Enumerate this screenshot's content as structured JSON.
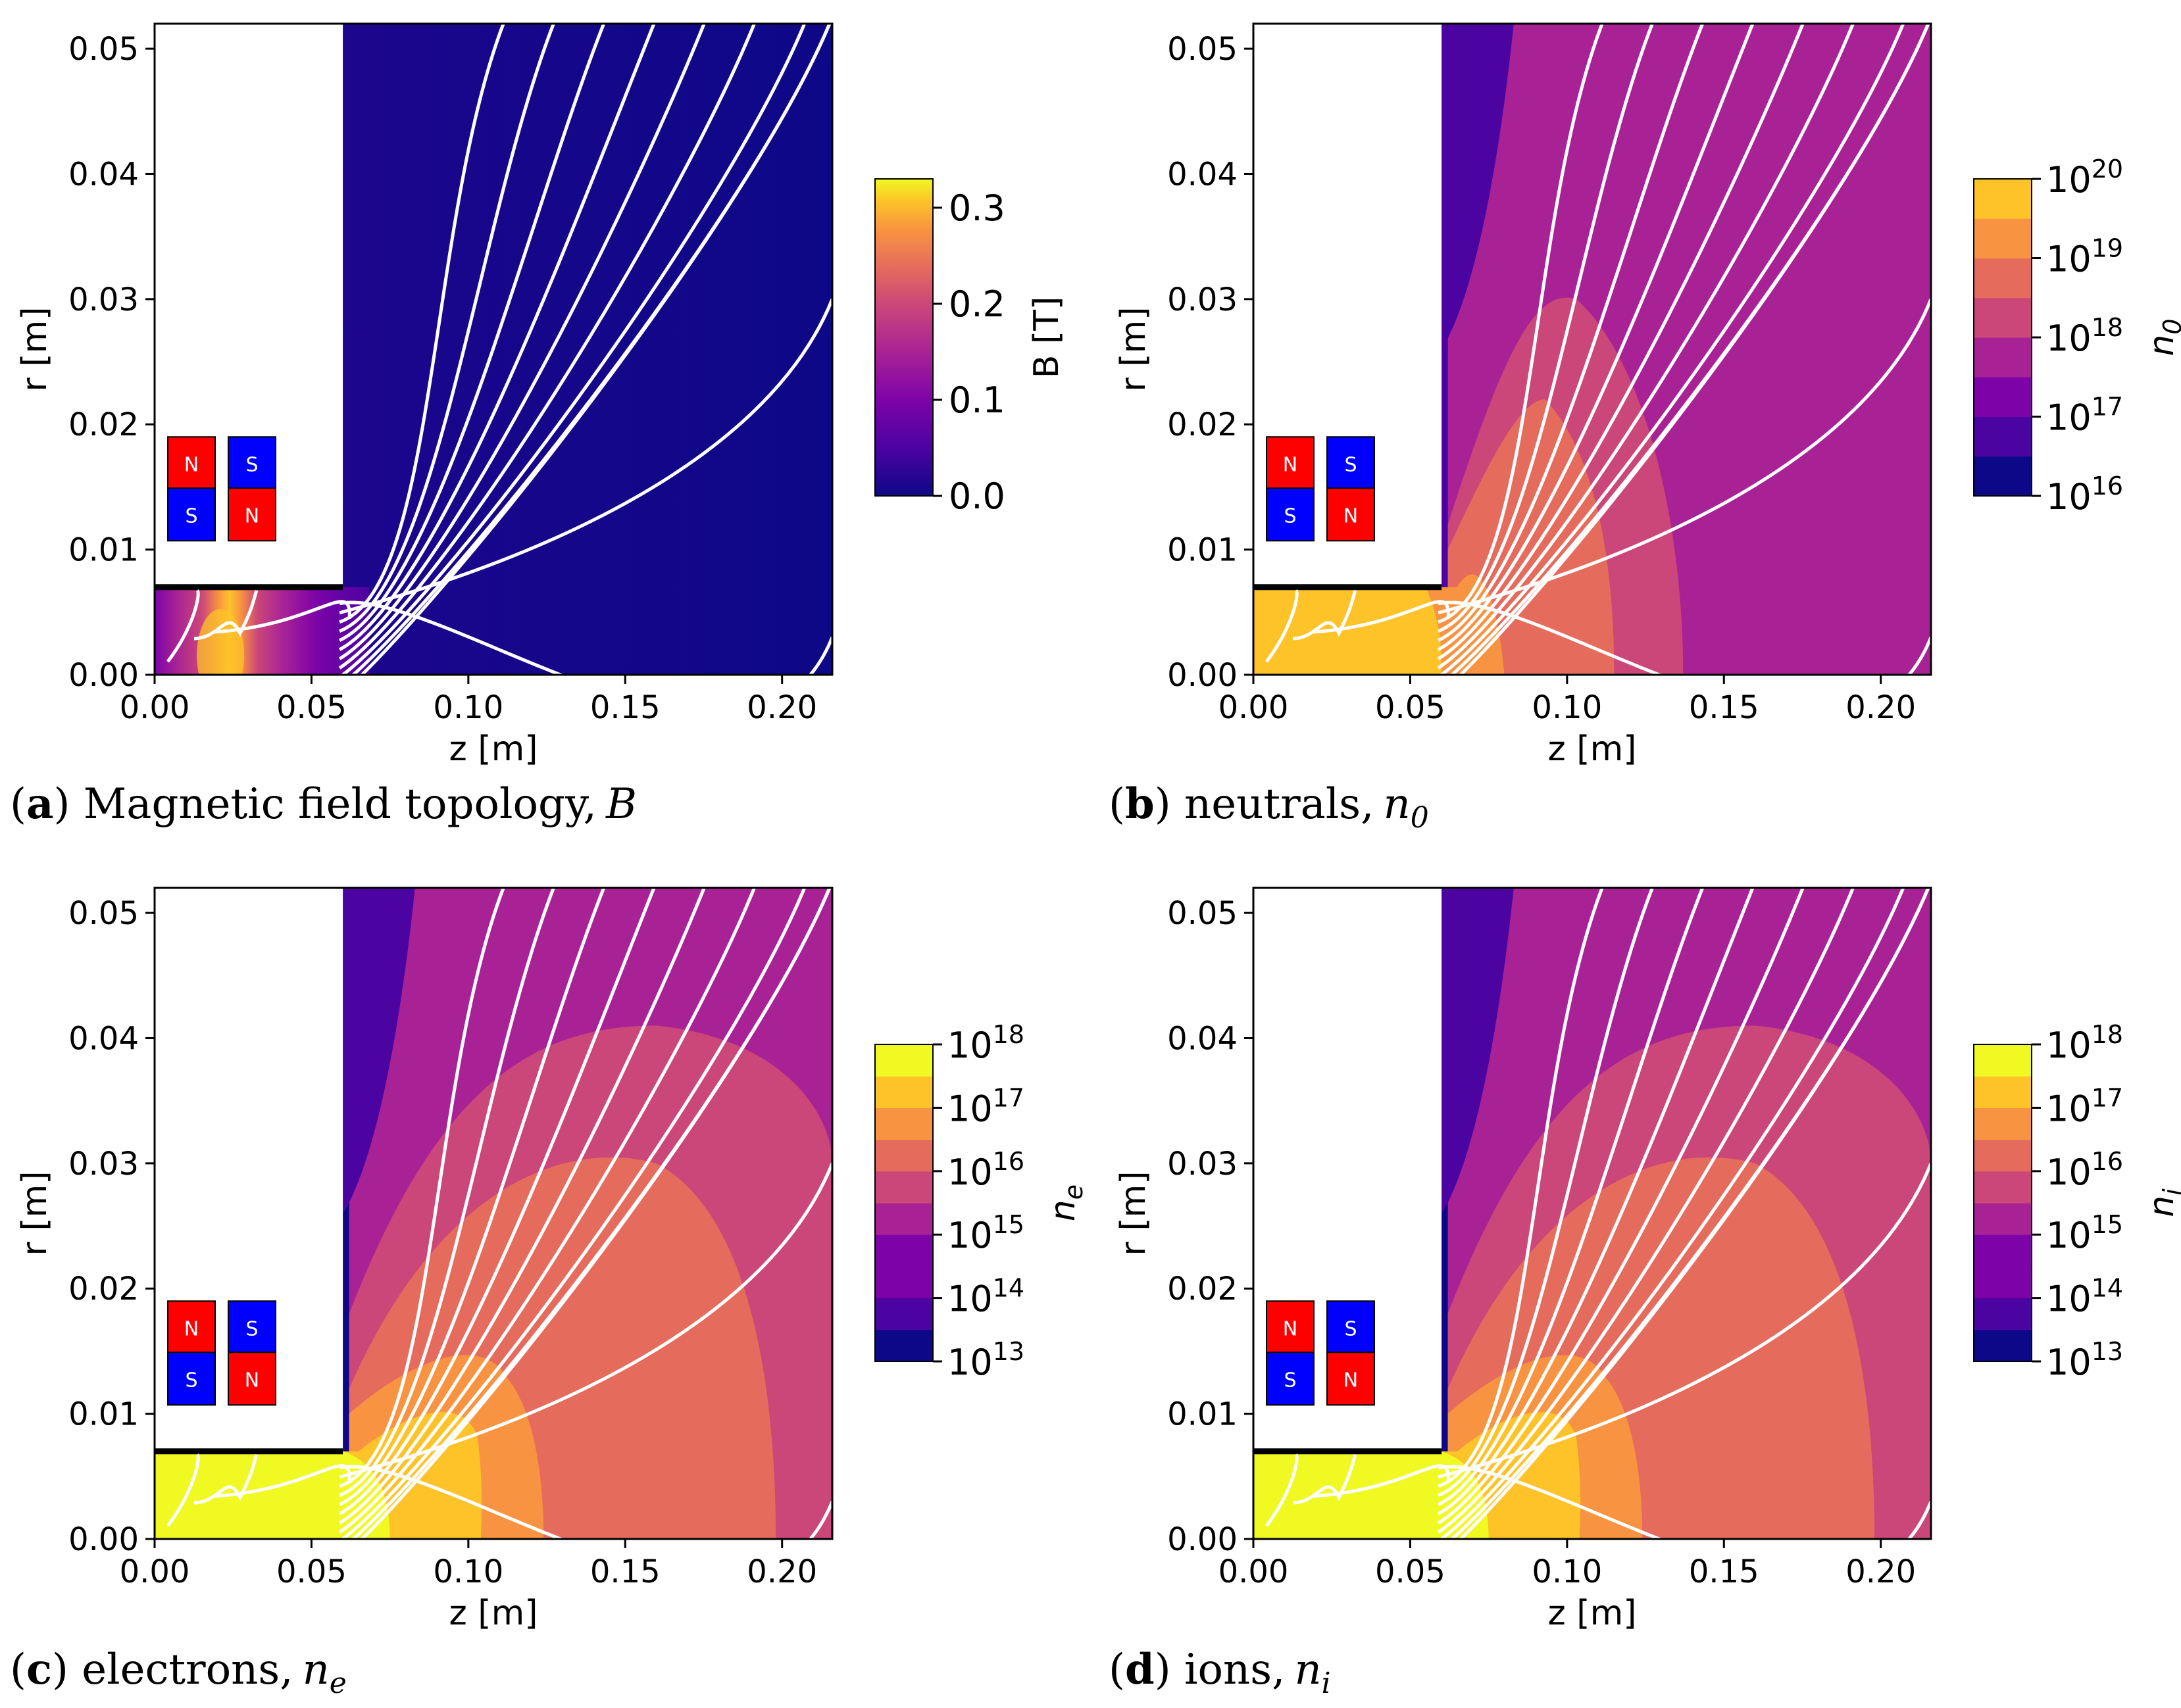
{
  "figure": {
    "colors": {
      "plasma_0": "#0d0887",
      "plasma_1": "#4b03a1",
      "plasma_2": "#7d03a8",
      "plasma_3": "#a82296",
      "plasma_4": "#cb4679",
      "plasma_5": "#e56b5d",
      "plasma_6": "#f89441",
      "plasma_7": "#fdc328",
      "plasma_8": "#f0f921",
      "magnet_red": "#ff0000",
      "magnet_blue": "#0000ff",
      "streamline": "#ffffff"
    }
  },
  "chart_data": [
    {
      "id": "a",
      "type": "heatmap",
      "caption_letter": "a",
      "caption_text": "Magnetic field topology,",
      "caption_symbol": "B",
      "caption_sub": "",
      "xlabel": "z [m]",
      "ylabel": "r [m]",
      "xlim": [
        0.0,
        0.216
      ],
      "ylim": [
        0.0,
        0.052
      ],
      "xticks": [
        "0.00",
        "0.05",
        "0.10",
        "0.15",
        "0.20"
      ],
      "yticks": [
        "0.00",
        "0.01",
        "0.02",
        "0.03",
        "0.04",
        "0.05"
      ],
      "colorbar": {
        "label": "B [T]",
        "scale": "linear",
        "ticks": [
          "0.0",
          "0.1",
          "0.2",
          "0.3"
        ],
        "range": [
          0.0,
          0.33
        ]
      },
      "magnets": [
        [
          "N",
          "S"
        ],
        [
          "S",
          "N"
        ]
      ],
      "wall": {
        "z_end": 0.06,
        "r": 0.007
      },
      "field_profile": [
        {
          "z": 0.005,
          "B": 0.08
        },
        {
          "z": 0.015,
          "B": 0.15
        },
        {
          "z": 0.021,
          "B": 0.33
        },
        {
          "z": 0.027,
          "B": 0.15
        },
        {
          "z": 0.035,
          "B": 0.08
        },
        {
          "z": 0.06,
          "B": 0.04
        },
        {
          "z": 0.216,
          "B": 0.0
        }
      ]
    },
    {
      "id": "b",
      "type": "heatmap",
      "caption_letter": "b",
      "caption_text": "neutrals,",
      "caption_symbol": "n",
      "caption_sub": "0",
      "xlabel": "z [m]",
      "ylabel": "r [m]",
      "xlim": [
        0.0,
        0.216
      ],
      "ylim": [
        0.0,
        0.052
      ],
      "xticks": [
        "0.00",
        "0.05",
        "0.10",
        "0.15",
        "0.20"
      ],
      "yticks": [
        "0.00",
        "0.01",
        "0.02",
        "0.03",
        "0.04",
        "0.05"
      ],
      "colorbar": {
        "label_base": "n",
        "label_sub": "0",
        "scale": "log",
        "tick_exponents": [
          "20",
          "19",
          "18",
          "17",
          "16"
        ],
        "range_exp": [
          16,
          20
        ]
      },
      "magnets": [
        [
          "N",
          "S"
        ],
        [
          "S",
          "N"
        ]
      ],
      "wall": {
        "z_end": 0.06,
        "r": 0.007
      },
      "levels_exp": [
        16,
        16.5,
        17,
        17.5,
        18,
        18.5,
        19,
        19.5,
        20
      ]
    },
    {
      "id": "c",
      "type": "heatmap",
      "caption_letter": "c",
      "caption_text": "electrons,",
      "caption_symbol": "n",
      "caption_sub": "e",
      "xlabel": "z [m]",
      "ylabel": "r [m]",
      "xlim": [
        0.0,
        0.216
      ],
      "ylim": [
        0.0,
        0.052
      ],
      "xticks": [
        "0.00",
        "0.05",
        "0.10",
        "0.15",
        "0.20"
      ],
      "yticks": [
        "0.00",
        "0.01",
        "0.02",
        "0.03",
        "0.04",
        "0.05"
      ],
      "colorbar": {
        "label_base": "n",
        "label_sub": "e",
        "scale": "log",
        "tick_exponents": [
          "18",
          "17",
          "16",
          "15",
          "14",
          "13"
        ],
        "range_exp": [
          13,
          18
        ]
      },
      "magnets": [
        [
          "N",
          "S"
        ],
        [
          "S",
          "N"
        ]
      ],
      "wall": {
        "z_end": 0.06,
        "r": 0.007
      },
      "levels_exp": [
        13,
        13.5,
        14,
        14.5,
        15,
        15.5,
        16,
        16.5,
        17,
        17.5,
        18
      ]
    },
    {
      "id": "d",
      "type": "heatmap",
      "caption_letter": "d",
      "caption_text": "ions,",
      "caption_symbol": "n",
      "caption_sub": "i",
      "xlabel": "z [m]",
      "ylabel": "r [m]",
      "xlim": [
        0.0,
        0.216
      ],
      "ylim": [
        0.0,
        0.052
      ],
      "xticks": [
        "0.00",
        "0.05",
        "0.10",
        "0.15",
        "0.20"
      ],
      "yticks": [
        "0.00",
        "0.01",
        "0.02",
        "0.03",
        "0.04",
        "0.05"
      ],
      "colorbar": {
        "label_base": "n",
        "label_sub": "i",
        "scale": "log",
        "tick_exponents": [
          "18",
          "17",
          "16",
          "15",
          "14",
          "13"
        ],
        "range_exp": [
          13,
          18
        ]
      },
      "magnets": [
        [
          "N",
          "S"
        ],
        [
          "S",
          "N"
        ]
      ],
      "wall": {
        "z_end": 0.06,
        "r": 0.007
      },
      "levels_exp": [
        13,
        13.5,
        14,
        14.5,
        15,
        15.5,
        16,
        16.5,
        17,
        17.5,
        18
      ]
    }
  ]
}
